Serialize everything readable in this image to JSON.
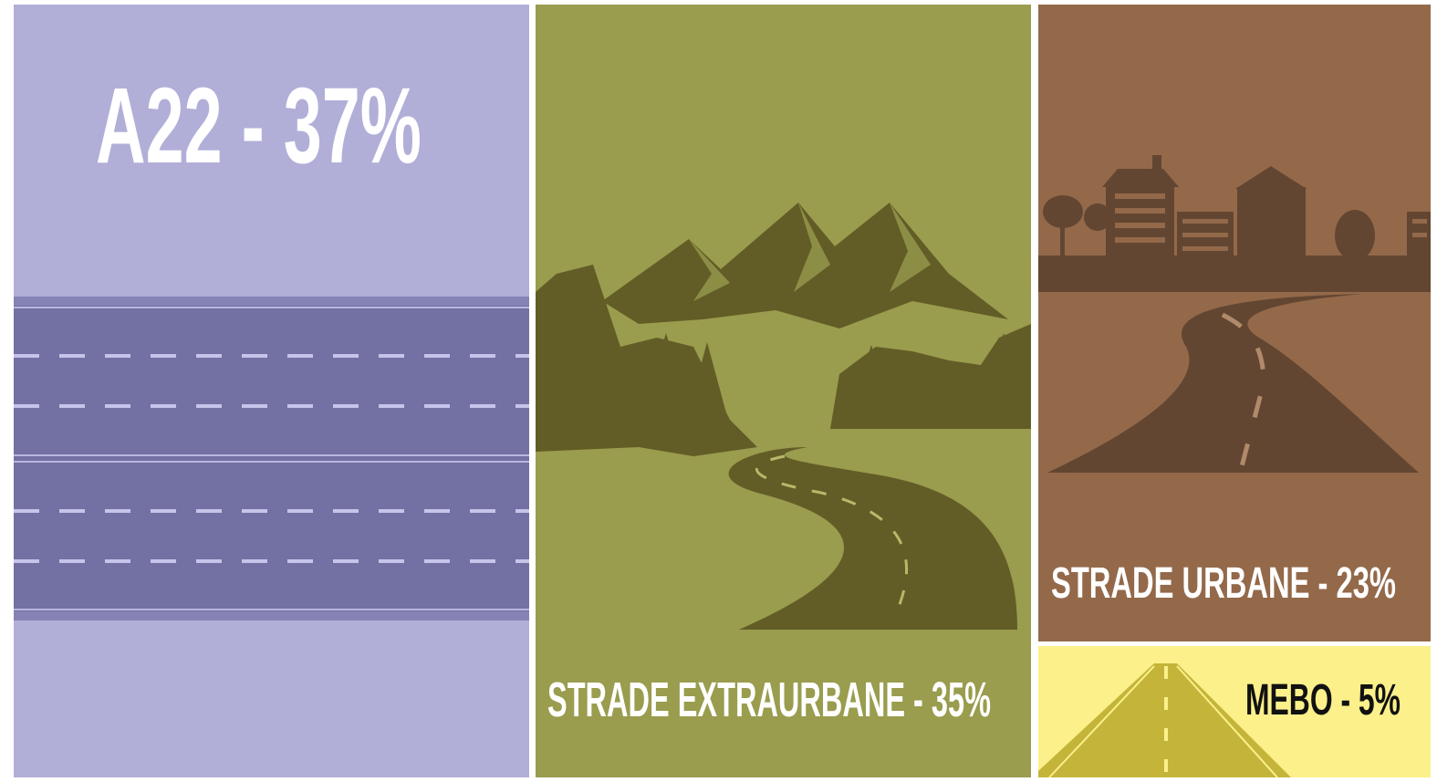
{
  "panels": [
    {
      "label": "A22 - 37%"
    },
    {
      "label": "STRADE EXTRAURBANE - 35%"
    },
    {
      "label": "STRADE URBANE - 23%"
    },
    {
      "label": "MEBO - 5%"
    }
  ]
}
